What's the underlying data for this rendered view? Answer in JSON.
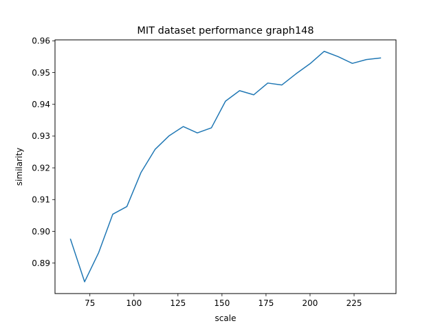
{
  "chart_data": {
    "type": "line",
    "title": "MIT dataset performance graph148",
    "xlabel": "scale",
    "ylabel": "similarity",
    "xlim": [
      55.2,
      248.8
    ],
    "ylim": [
      0.8804,
      0.9603
    ],
    "xticks": [
      75,
      100,
      125,
      150,
      175,
      200,
      225
    ],
    "xtick_labels": [
      "75",
      "100",
      "125",
      "150",
      "175",
      "200",
      "225"
    ],
    "yticks": [
      0.89,
      0.9,
      0.91,
      0.92,
      0.93,
      0.94,
      0.95,
      0.96
    ],
    "ytick_labels": [
      "0.89",
      "0.90",
      "0.91",
      "0.92",
      "0.93",
      "0.94",
      "0.95",
      "0.96"
    ],
    "grid": false,
    "line_color": "#1f77b4",
    "series": [
      {
        "x": [
          64,
          72,
          80,
          88,
          96,
          104,
          112,
          120,
          128,
          136,
          144,
          152,
          160,
          168,
          176,
          184,
          192,
          200,
          208,
          216,
          224,
          232,
          240
        ],
        "values": [
          0.8975,
          0.8841,
          0.8933,
          0.9054,
          0.9078,
          0.9185,
          0.9258,
          0.9301,
          0.933,
          0.931,
          0.9326,
          0.941,
          0.9443,
          0.943,
          0.9467,
          0.9461,
          0.9496,
          0.9528,
          0.9567,
          0.955,
          0.9529,
          0.9541,
          0.9546
        ]
      }
    ]
  }
}
